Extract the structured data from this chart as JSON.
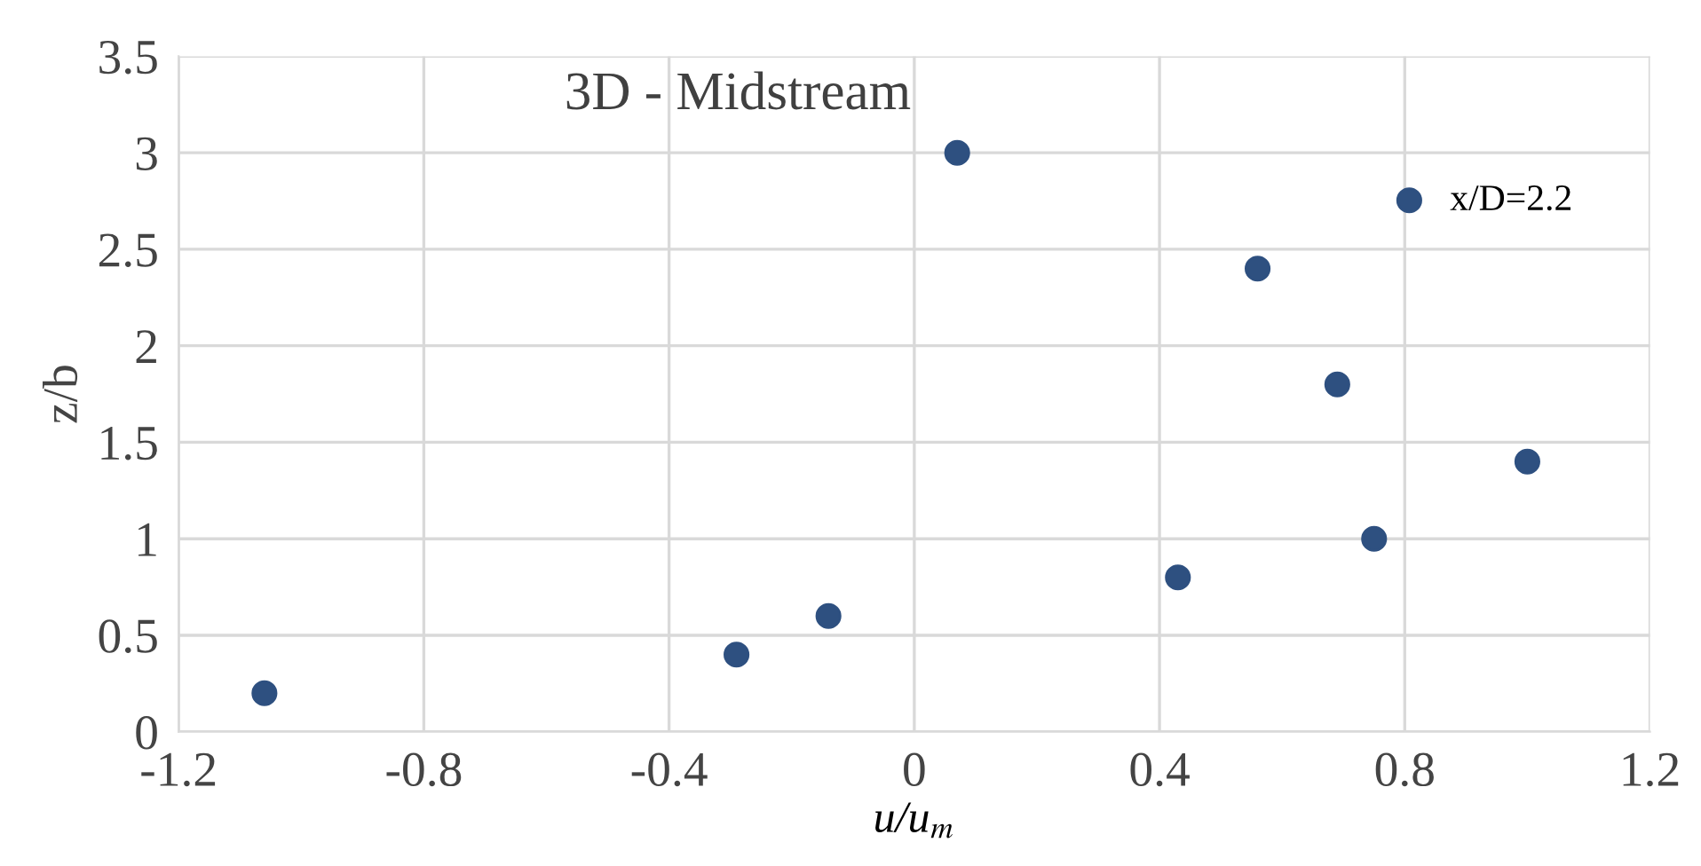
{
  "chart_data": {
    "type": "scatter",
    "title": "3D - Midstream",
    "xlabel": "u/u$_{m}$",
    "ylabel": "z/b",
    "x": [
      -1.06,
      -0.29,
      -0.14,
      0.07,
      0.43,
      0.56,
      0.69,
      0.75,
      1.0
    ],
    "series": [
      {
        "name": "x/D=2.2",
        "color": "#2e5080",
        "values": [
          0.2,
          0.4,
          0.6,
          3.0,
          0.8,
          2.4,
          1.8,
          1.0,
          1.4
        ]
      }
    ],
    "xlim": [
      -1.2,
      1.2
    ],
    "xticks": [
      -1.2,
      -0.8,
      -0.4,
      0,
      0.4,
      0.8,
      1.2
    ],
    "ylim": [
      0,
      3.5
    ],
    "yticks": [
      0,
      0.5,
      1,
      1.5,
      2,
      2.5,
      3,
      3.5
    ],
    "grid": true,
    "legend": "top right",
    "marker": "circle"
  }
}
